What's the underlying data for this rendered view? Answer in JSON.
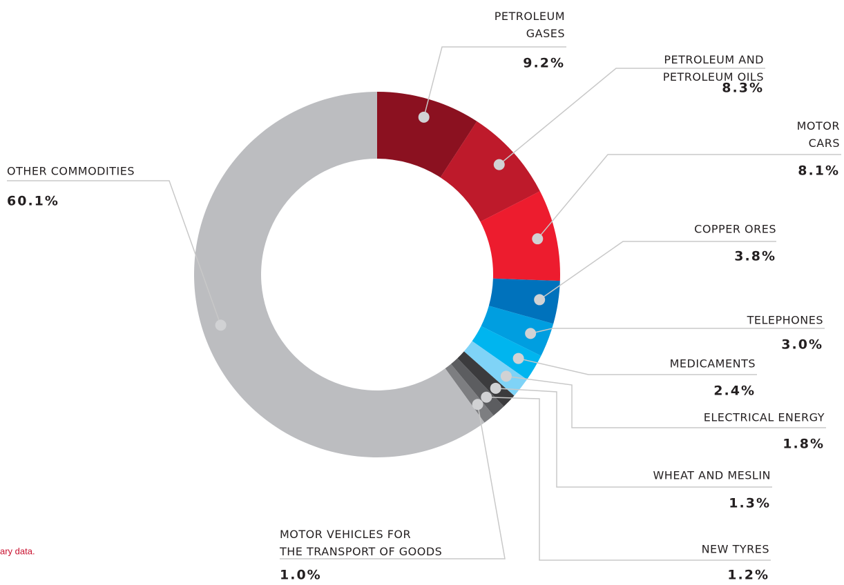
{
  "chart_data": {
    "type": "donut",
    "categories": [
      "PETROLEUM\nGASES",
      "PETROLEUM AND\nPETROLEUM OILS",
      "MOTOR\nCARS",
      "COPPER ORES",
      "TELEPHONES",
      "MEDICAMENTS",
      "ELECTRICAL ENERGY",
      "WHEAT AND MESLIN",
      "NEW TYRES",
      "MOTOR VEHICLES FOR\nTHE TRANSPORT OF GOODS",
      "OTHER COMMODITIES"
    ],
    "values": [
      9.2,
      8.3,
      8.1,
      3.8,
      3.0,
      2.4,
      1.8,
      1.3,
      1.2,
      1.0,
      60.1
    ],
    "value_labels": [
      "9.2%",
      "8.3%",
      "8.1%",
      "3.8%",
      "3.0%",
      "2.4%",
      "1.8%",
      "1.3%",
      "1.2%",
      "1.0%",
      "60.1%"
    ],
    "colors": [
      "#8b1120",
      "#be1a2b",
      "#ed1c2e",
      "#0072bc",
      "#009ee0",
      "#00b5ef",
      "#7fd3f7",
      "#3b3b3d",
      "#5c5d60",
      "#7d7e81",
      "#bcbdc0"
    ],
    "note": "ary data."
  }
}
